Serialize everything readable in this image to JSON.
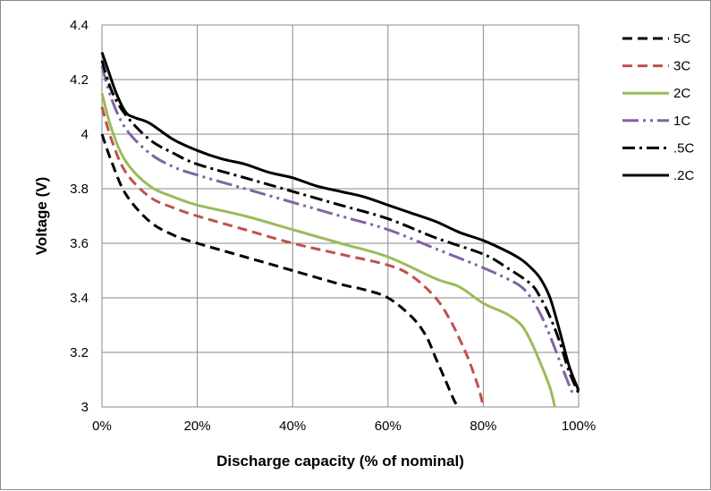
{
  "chart_data": {
    "type": "line",
    "title": "",
    "xlabel": "Discharge capacity (% of nominal)",
    "ylabel": "Voltage (V)",
    "xlim": [
      0,
      100
    ],
    "ylim": [
      3,
      4.4
    ],
    "x_ticks": [
      0,
      20,
      40,
      60,
      80,
      100
    ],
    "x_tick_labels": [
      "0%",
      "20%",
      "40%",
      "60%",
      "80%",
      "100%"
    ],
    "y_ticks": [
      3,
      3.2,
      3.4,
      3.6,
      3.8,
      4,
      4.2,
      4.4
    ],
    "y_tick_labels": [
      "3",
      "3.2",
      "3.4",
      "3.6",
      "3.8",
      "4",
      "4.2",
      "4.4"
    ],
    "grid": true,
    "legend_position": "right",
    "series": [
      {
        "name": "5C",
        "color": "#000000",
        "dash": "dash",
        "x": [
          0,
          2,
          5,
          10,
          15,
          20,
          30,
          40,
          50,
          55,
          60,
          65,
          68,
          70,
          72,
          74,
          75
        ],
        "y": [
          4.0,
          3.9,
          3.78,
          3.68,
          3.63,
          3.6,
          3.55,
          3.5,
          3.45,
          3.43,
          3.4,
          3.33,
          3.26,
          3.18,
          3.1,
          3.02,
          3.0
        ]
      },
      {
        "name": "3C",
        "color": "#c0504d",
        "dash": "dash",
        "x": [
          0,
          2,
          5,
          10,
          15,
          20,
          30,
          40,
          50,
          60,
          65,
          70,
          73,
          75,
          77,
          79,
          80
        ],
        "y": [
          4.1,
          3.98,
          3.86,
          3.77,
          3.73,
          3.7,
          3.65,
          3.6,
          3.56,
          3.52,
          3.48,
          3.4,
          3.32,
          3.25,
          3.17,
          3.07,
          3.0
        ]
      },
      {
        "name": "2C",
        "color": "#9bbb59",
        "dash": "solid",
        "x": [
          0,
          2,
          5,
          10,
          15,
          20,
          30,
          40,
          50,
          60,
          70,
          75,
          80,
          85,
          88,
          90,
          92,
          94,
          95
        ],
        "y": [
          4.15,
          4.02,
          3.9,
          3.81,
          3.77,
          3.74,
          3.7,
          3.65,
          3.6,
          3.55,
          3.47,
          3.44,
          3.38,
          3.34,
          3.3,
          3.24,
          3.16,
          3.07,
          3.0
        ]
      },
      {
        "name": "1C",
        "color": "#8064a2",
        "dash": "dashdotdot",
        "x": [
          0,
          2,
          5,
          10,
          15,
          20,
          30,
          40,
          50,
          60,
          70,
          80,
          85,
          88,
          90,
          92,
          94,
          96,
          98,
          99
        ],
        "y": [
          4.25,
          4.13,
          4.02,
          3.93,
          3.88,
          3.85,
          3.8,
          3.75,
          3.7,
          3.65,
          3.58,
          3.51,
          3.47,
          3.44,
          3.4,
          3.34,
          3.26,
          3.17,
          3.08,
          3.04
        ]
      },
      {
        "name": ".5C",
        "color": "#000000",
        "dash": "dashdot",
        "x": [
          0,
          2,
          5,
          10,
          15,
          20,
          30,
          40,
          50,
          60,
          70,
          80,
          85,
          90,
          92,
          94,
          96,
          98,
          100
        ],
        "y": [
          4.27,
          4.16,
          4.07,
          3.98,
          3.93,
          3.89,
          3.84,
          3.79,
          3.74,
          3.69,
          3.62,
          3.56,
          3.51,
          3.45,
          3.4,
          3.33,
          3.24,
          3.13,
          3.05
        ]
      },
      {
        "name": ".2C",
        "color": "#000000",
        "dash": "solid",
        "x": [
          0,
          1,
          3,
          5,
          7,
          10,
          15,
          20,
          25,
          30,
          35,
          40,
          45,
          50,
          55,
          60,
          65,
          70,
          75,
          80,
          85,
          88,
          90,
          92,
          94,
          96,
          98,
          100
        ],
        "y": [
          4.3,
          4.25,
          4.15,
          4.08,
          4.06,
          4.04,
          3.98,
          3.94,
          3.91,
          3.89,
          3.86,
          3.84,
          3.81,
          3.79,
          3.77,
          3.74,
          3.71,
          3.68,
          3.64,
          3.61,
          3.57,
          3.54,
          3.51,
          3.47,
          3.4,
          3.28,
          3.15,
          3.06
        ]
      }
    ]
  }
}
